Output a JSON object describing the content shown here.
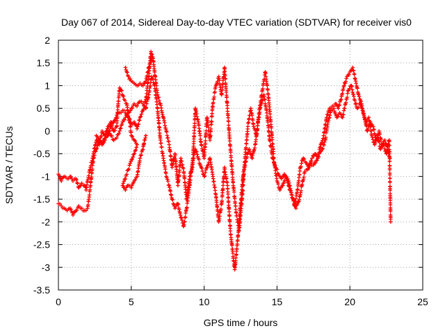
{
  "chart_data": {
    "type": "scatter",
    "title": "Day 067 of 2014, Sidereal Day-to-day VTEC variation (SDTVAR) for receiver vis0",
    "xlabel": "GPS time / hours",
    "ylabel": "SDTVAR / TECUs",
    "xlim": [
      0,
      25
    ],
    "ylim": [
      -3.5,
      2
    ],
    "grid": true,
    "xticks": [
      0,
      5,
      10,
      15,
      20,
      25
    ],
    "xtick_labels": [
      "0",
      "5",
      "10",
      "15",
      "20",
      "25"
    ],
    "yticks": [
      -3.5,
      -3,
      -2.5,
      -2,
      -1.5,
      -1,
      -0.5,
      0,
      0.5,
      1,
      1.5,
      2
    ],
    "ytick_labels": [
      "-3.5",
      "-3",
      "-2.5",
      "-2",
      "-1.5",
      "-1",
      "-0.5",
      "0",
      "0.5",
      "1",
      "1.5",
      "2"
    ],
    "marker": "+",
    "series": [
      {
        "name": "track-a",
        "color": "#ff0000",
        "points": [
          [
            0.0,
            -0.95
          ],
          [
            0.2,
            -1.1
          ],
          [
            0.4,
            -1.0
          ],
          [
            0.6,
            -1.05
          ],
          [
            0.8,
            -1.0
          ],
          [
            1.0,
            -1.1
          ],
          [
            1.2,
            -1.05
          ],
          [
            1.4,
            -1.25
          ],
          [
            1.6,
            -1.15
          ],
          [
            1.8,
            -1.2
          ],
          [
            1.9,
            -1.3
          ],
          [
            2.0,
            -1.1
          ],
          [
            2.2,
            -0.8
          ],
          [
            2.4,
            -0.5
          ],
          [
            2.6,
            -0.2
          ],
          [
            2.8,
            -0.3
          ],
          [
            3.0,
            0.0
          ],
          [
            3.2,
            -0.1
          ],
          [
            3.4,
            0.1
          ],
          [
            3.6,
            0.2
          ],
          [
            3.8,
            0.0
          ],
          [
            4.0,
            0.1
          ],
          [
            4.1,
            0.6
          ],
          [
            4.2,
            0.95
          ],
          [
            4.3,
            0.9
          ],
          [
            4.5,
            0.7
          ],
          [
            4.7,
            0.6
          ],
          [
            4.8,
            0.3
          ],
          [
            5.0,
            0.15
          ],
          [
            5.2,
            0.2
          ],
          [
            5.4,
            0.05
          ],
          [
            5.6,
            0.3
          ],
          [
            5.8,
            0.45
          ],
          [
            6.0,
            0.7
          ],
          [
            6.2,
            1.2
          ],
          [
            6.35,
            1.75
          ],
          [
            6.5,
            1.6
          ],
          [
            6.6,
            1.3
          ],
          [
            6.8,
            0.8
          ],
          [
            7.0,
            0.6
          ],
          [
            7.2,
            0.3
          ],
          [
            7.4,
            0.0
          ],
          [
            7.6,
            -0.3
          ],
          [
            7.8,
            -0.8
          ],
          [
            8.0,
            -0.5
          ],
          [
            8.2,
            -1.2
          ],
          [
            8.4,
            -0.6
          ],
          [
            8.6,
            -0.9
          ],
          [
            8.8,
            -1.5
          ],
          [
            9.0,
            -1.0
          ],
          [
            9.2,
            -0.8
          ],
          [
            9.4,
            0.5
          ],
          [
            9.6,
            0.2
          ],
          [
            9.8,
            -0.3
          ],
          [
            10.0,
            -0.6
          ],
          [
            10.2,
            0.3
          ],
          [
            10.4,
            -0.2
          ],
          [
            10.6,
            0.6
          ],
          [
            10.8,
            1.0
          ],
          [
            11.0,
            1.2
          ],
          [
            11.2,
            0.8
          ],
          [
            11.4,
            1.4
          ],
          [
            11.6,
            0.5
          ],
          [
            11.8,
            -0.4
          ],
          [
            12.0,
            -1.2
          ],
          [
            12.2,
            -1.8
          ],
          [
            12.4,
            -2.2
          ],
          [
            12.6,
            -1.5
          ],
          [
            12.8,
            -0.6
          ],
          [
            13.0,
            0.1
          ],
          [
            13.2,
            0.5
          ],
          [
            13.4,
            0.1
          ],
          [
            13.6,
            -0.1
          ],
          [
            13.8,
            0.5
          ],
          [
            14.0,
            0.9
          ],
          [
            14.2,
            1.3
          ],
          [
            14.4,
            0.8
          ],
          [
            14.6,
            0.1
          ],
          [
            14.8,
            -0.7
          ],
          [
            15.0,
            -1.1
          ],
          [
            15.2,
            -1.3
          ],
          [
            15.4,
            -1.2
          ],
          [
            15.6,
            -1.0
          ],
          [
            15.8,
            -1.1
          ],
          [
            16.0,
            -1.4
          ],
          [
            16.2,
            -1.65
          ],
          [
            16.4,
            -1.3
          ],
          [
            16.6,
            -0.8
          ],
          [
            16.8,
            -0.6
          ],
          [
            17.0,
            -0.7
          ],
          [
            17.2,
            -0.8
          ],
          [
            17.4,
            -0.6
          ],
          [
            17.6,
            -0.5
          ],
          [
            17.8,
            -0.6
          ],
          [
            18.0,
            -0.3
          ],
          [
            18.2,
            -0.1
          ],
          [
            18.4,
            0.3
          ],
          [
            18.6,
            0.5
          ],
          [
            18.8,
            0.55
          ],
          [
            19.0,
            0.6
          ],
          [
            19.2,
            0.5
          ],
          [
            19.4,
            0.7
          ],
          [
            19.6,
            1.0
          ],
          [
            19.8,
            1.2
          ],
          [
            20.0,
            1.3
          ],
          [
            20.2,
            1.4
          ],
          [
            20.4,
            1.1
          ],
          [
            20.6,
            0.8
          ],
          [
            20.8,
            0.6
          ],
          [
            21.0,
            0.3
          ],
          [
            21.2,
            0.0
          ],
          [
            21.4,
            0.2
          ],
          [
            21.6,
            0.1
          ],
          [
            21.8,
            -0.2
          ],
          [
            22.0,
            0.0
          ],
          [
            22.2,
            -0.3
          ],
          [
            22.4,
            -0.2
          ],
          [
            22.6,
            -0.4
          ],
          [
            22.75,
            -0.6
          ]
        ]
      },
      {
        "name": "track-b",
        "color": "#ff0000",
        "points": [
          [
            0.0,
            -1.6
          ],
          [
            0.2,
            -1.65
          ],
          [
            0.4,
            -1.7
          ],
          [
            0.6,
            -1.75
          ],
          [
            0.8,
            -1.7
          ],
          [
            1.0,
            -1.85
          ],
          [
            1.2,
            -1.75
          ],
          [
            1.4,
            -1.65
          ],
          [
            1.6,
            -1.7
          ],
          [
            1.8,
            -1.75
          ],
          [
            2.0,
            -1.7
          ],
          [
            2.2,
            -1.2
          ],
          [
            2.4,
            -0.6
          ],
          [
            2.6,
            -0.4
          ],
          [
            2.8,
            -0.2
          ],
          [
            3.0,
            -0.3
          ],
          [
            3.2,
            -0.1
          ],
          [
            3.4,
            0.0
          ],
          [
            3.6,
            -0.1
          ],
          [
            3.8,
            -0.2
          ],
          [
            4.0,
            -0.15
          ],
          [
            4.2,
            0.0
          ],
          [
            4.4,
            0.2
          ],
          [
            4.6,
            0.3
          ],
          [
            4.8,
            0.4
          ],
          [
            5.0,
            0.5
          ],
          [
            5.2,
            0.6
          ],
          [
            5.4,
            0.55
          ],
          [
            5.6,
            0.65
          ],
          [
            5.8,
            0.6
          ],
          [
            6.0,
            0.5
          ],
          [
            6.2,
            0.8
          ],
          [
            6.4,
            1.2
          ],
          [
            6.6,
            1.0
          ],
          [
            6.8,
            0.5
          ],
          [
            7.0,
            -0.2
          ],
          [
            7.2,
            -0.6
          ],
          [
            7.4,
            -1.0
          ],
          [
            7.6,
            -1.2
          ],
          [
            7.8,
            -1.5
          ],
          [
            8.0,
            -1.7
          ],
          [
            8.2,
            -1.6
          ],
          [
            8.4,
            -1.9
          ],
          [
            8.6,
            -2.1
          ],
          [
            8.8,
            -1.7
          ],
          [
            9.0,
            -1.2
          ],
          [
            9.2,
            -0.7
          ],
          [
            9.4,
            -0.4
          ],
          [
            9.6,
            -0.6
          ],
          [
            9.8,
            -0.8
          ],
          [
            10.0,
            -1.0
          ],
          [
            10.2,
            -0.8
          ],
          [
            10.4,
            -0.6
          ],
          [
            10.6,
            -1.0
          ],
          [
            10.8,
            -1.4
          ],
          [
            11.0,
            -2.0
          ],
          [
            11.2,
            -1.6
          ],
          [
            11.4,
            -0.8
          ],
          [
            11.6,
            -1.2
          ],
          [
            11.8,
            -2.2
          ],
          [
            12.0,
            -2.8
          ],
          [
            12.1,
            -3.05
          ],
          [
            12.3,
            -2.4
          ],
          [
            12.5,
            -1.6
          ],
          [
            12.7,
            -0.9
          ],
          [
            12.9,
            -0.6
          ],
          [
            13.1,
            -0.4
          ],
          [
            13.3,
            -0.6
          ],
          [
            13.5,
            -0.3
          ],
          [
            13.7,
            0.2
          ],
          [
            13.9,
            0.6
          ],
          [
            14.1,
            0.8
          ],
          [
            14.3,
            0.4
          ],
          [
            14.5,
            -0.2
          ],
          [
            14.7,
            -0.6
          ],
          [
            14.9,
            -0.8
          ],
          [
            15.1,
            -0.95
          ],
          [
            15.3,
            -1.05
          ],
          [
            15.5,
            -0.95
          ],
          [
            15.7,
            -1.1
          ],
          [
            15.9,
            -1.3
          ],
          [
            16.1,
            -1.5
          ],
          [
            16.3,
            -1.7
          ],
          [
            16.5,
            -1.55
          ],
          [
            16.7,
            -1.2
          ],
          [
            16.9,
            -0.9
          ],
          [
            17.1,
            -0.85
          ],
          [
            17.3,
            -0.7
          ],
          [
            17.5,
            -0.75
          ],
          [
            17.7,
            -0.65
          ],
          [
            17.9,
            -0.5
          ],
          [
            18.1,
            -0.4
          ],
          [
            18.3,
            -0.2
          ],
          [
            18.5,
            0.2
          ],
          [
            18.7,
            0.45
          ],
          [
            18.9,
            0.5
          ],
          [
            19.1,
            0.3
          ],
          [
            19.3,
            0.4
          ],
          [
            19.5,
            0.3
          ],
          [
            19.7,
            0.6
          ],
          [
            19.9,
            0.9
          ],
          [
            20.1,
            1.0
          ],
          [
            20.3,
            0.7
          ],
          [
            20.5,
            0.5
          ],
          [
            20.7,
            0.6
          ],
          [
            20.9,
            0.4
          ],
          [
            21.1,
            0.2
          ],
          [
            21.3,
            0.3
          ],
          [
            21.5,
            -0.1
          ],
          [
            21.7,
            -0.3
          ],
          [
            21.9,
            -0.1
          ],
          [
            22.1,
            -0.4
          ],
          [
            22.3,
            -0.3
          ],
          [
            22.5,
            -0.5
          ],
          [
            22.7,
            -0.2
          ],
          [
            22.8,
            -2.0
          ]
        ]
      },
      {
        "name": "track-c",
        "color": "#ff0000",
        "points": [
          [
            2.6,
            -0.1
          ],
          [
            2.8,
            -0.2
          ],
          [
            3.0,
            -0.3
          ],
          [
            3.2,
            -0.2
          ],
          [
            3.4,
            -0.1
          ],
          [
            3.6,
            0.1
          ],
          [
            3.8,
            0.2
          ],
          [
            4.0,
            0.35
          ],
          [
            4.2,
            0.4
          ],
          [
            4.4,
            0.45
          ],
          [
            4.6,
            0.4
          ],
          [
            4.8,
            0.3
          ],
          [
            4.9,
            0.2
          ],
          [
            5.0,
            -0.1
          ],
          [
            5.2,
            -0.2
          ],
          [
            5.4,
            -0.3
          ],
          [
            4.4,
            -1.2
          ],
          [
            4.6,
            -1.3
          ],
          [
            4.8,
            -1.2
          ],
          [
            5.0,
            -1.25
          ],
          [
            5.2,
            -1.1
          ],
          [
            5.4,
            -1.0
          ],
          [
            5.6,
            -0.6
          ],
          [
            5.8,
            -0.4
          ],
          [
            5.9,
            -0.2
          ],
          [
            6.0,
            -0.1
          ],
          [
            4.6,
            1.4
          ],
          [
            4.8,
            1.2
          ],
          [
            5.0,
            1.1
          ],
          [
            5.2,
            1.05
          ],
          [
            5.4,
            1.0
          ],
          [
            5.6,
            1.05
          ],
          [
            5.8,
            1.0
          ],
          [
            6.0,
            1.1
          ],
          [
            6.2,
            1.4
          ],
          [
            6.4,
            1.6
          ]
        ]
      }
    ]
  }
}
